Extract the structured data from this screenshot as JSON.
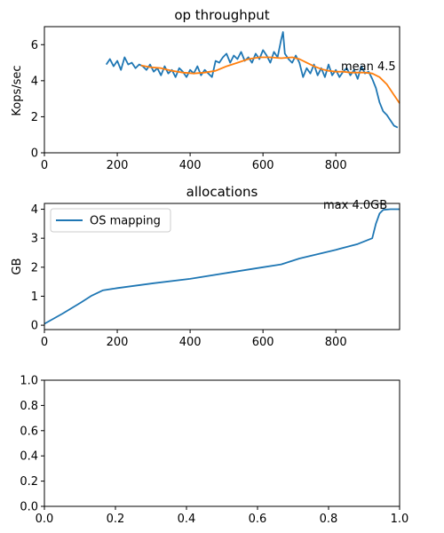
{
  "chart_data": [
    {
      "type": "line",
      "title": "op throughput",
      "xlabel": "",
      "ylabel": "Kops/sec",
      "xlim": [
        0,
        975
      ],
      "ylim": [
        0,
        7
      ],
      "xticks": [
        0,
        200,
        400,
        600,
        800
      ],
      "yticks": [
        0,
        2,
        4,
        6
      ],
      "grid": false,
      "annotation": "mean 4.5",
      "series": [
        {
          "color": "#1f77b4",
          "x": [
            170,
            180,
            190,
            200,
            210,
            220,
            230,
            240,
            250,
            260,
            270,
            280,
            290,
            300,
            310,
            320,
            330,
            340,
            350,
            360,
            370,
            380,
            390,
            400,
            410,
            420,
            430,
            440,
            450,
            460,
            470,
            480,
            490,
            500,
            510,
            520,
            530,
            540,
            550,
            560,
            570,
            580,
            590,
            600,
            610,
            620,
            630,
            640,
            650,
            655,
            660,
            670,
            680,
            690,
            700,
            710,
            720,
            730,
            740,
            750,
            760,
            770,
            780,
            790,
            800,
            810,
            820,
            830,
            840,
            850,
            860,
            870,
            880,
            890,
            900,
            910,
            920,
            930,
            940,
            950,
            960,
            970
          ],
          "values": [
            4.9,
            5.2,
            4.8,
            5.1,
            4.6,
            5.3,
            4.9,
            5.0,
            4.7,
            4.9,
            4.8,
            4.6,
            4.9,
            4.5,
            4.7,
            4.3,
            4.8,
            4.4,
            4.6,
            4.2,
            4.7,
            4.5,
            4.2,
            4.6,
            4.4,
            4.8,
            4.3,
            4.6,
            4.4,
            4.2,
            5.1,
            5.0,
            5.3,
            5.5,
            5.0,
            5.4,
            5.2,
            5.6,
            5.1,
            5.3,
            5.0,
            5.5,
            5.2,
            5.7,
            5.4,
            5.0,
            5.6,
            5.3,
            6.3,
            6.7,
            5.5,
            5.2,
            5.0,
            5.4,
            5.0,
            4.2,
            4.7,
            4.4,
            4.9,
            4.3,
            4.7,
            4.2,
            4.9,
            4.3,
            4.6,
            4.2,
            4.5,
            4.7,
            4.3,
            4.6,
            4.1,
            4.8,
            4.4,
            4.5,
            4.1,
            3.6,
            2.8,
            2.3,
            2.1,
            1.8,
            1.5,
            1.4
          ]
        },
        {
          "color": "#ff7f0e",
          "x": [
            265,
            290,
            320,
            350,
            380,
            410,
            440,
            470,
            500,
            530,
            560,
            590,
            620,
            650,
            680,
            700,
            720,
            740,
            760,
            780,
            800,
            820,
            840,
            860,
            880,
            900,
            920,
            940,
            960,
            975
          ],
          "values": [
            4.85,
            4.75,
            4.7,
            4.55,
            4.45,
            4.4,
            4.45,
            4.55,
            4.8,
            5.0,
            5.2,
            5.3,
            5.3,
            5.25,
            5.3,
            5.2,
            5.0,
            4.8,
            4.65,
            4.55,
            4.5,
            4.5,
            4.45,
            4.45,
            4.45,
            4.4,
            4.2,
            3.8,
            3.2,
            2.75
          ]
        }
      ]
    },
    {
      "type": "line",
      "title": "allocations",
      "xlabel": "",
      "ylabel": "GB",
      "xlim": [
        0,
        975
      ],
      "ylim": [
        -0.15,
        4.2
      ],
      "xticks": [
        0,
        200,
        400,
        600,
        800
      ],
      "yticks": [
        0,
        1,
        2,
        3,
        4
      ],
      "grid": false,
      "legend": "top-left",
      "annotation": "max 4.0GB",
      "series": [
        {
          "name": "OS mapping",
          "color": "#1f77b4",
          "x": [
            0,
            50,
            100,
            130,
            160,
            200,
            300,
            400,
            500,
            600,
            650,
            700,
            800,
            860,
            900,
            910,
            920,
            930,
            950,
            975
          ],
          "values": [
            0.05,
            0.4,
            0.78,
            1.02,
            1.2,
            1.28,
            1.45,
            1.6,
            1.8,
            2.0,
            2.1,
            2.3,
            2.6,
            2.8,
            3.0,
            3.5,
            3.85,
            3.98,
            4.0,
            4.0
          ]
        }
      ]
    },
    {
      "type": "line",
      "title": "",
      "xlabel": "",
      "ylabel": "",
      "xlim": [
        0,
        1
      ],
      "ylim": [
        0,
        1
      ],
      "xticks": [
        0.0,
        0.2,
        0.4,
        0.6,
        0.8,
        1.0
      ],
      "yticks": [
        0.0,
        0.2,
        0.4,
        0.6,
        0.8,
        1.0
      ],
      "grid": false,
      "series": []
    }
  ]
}
